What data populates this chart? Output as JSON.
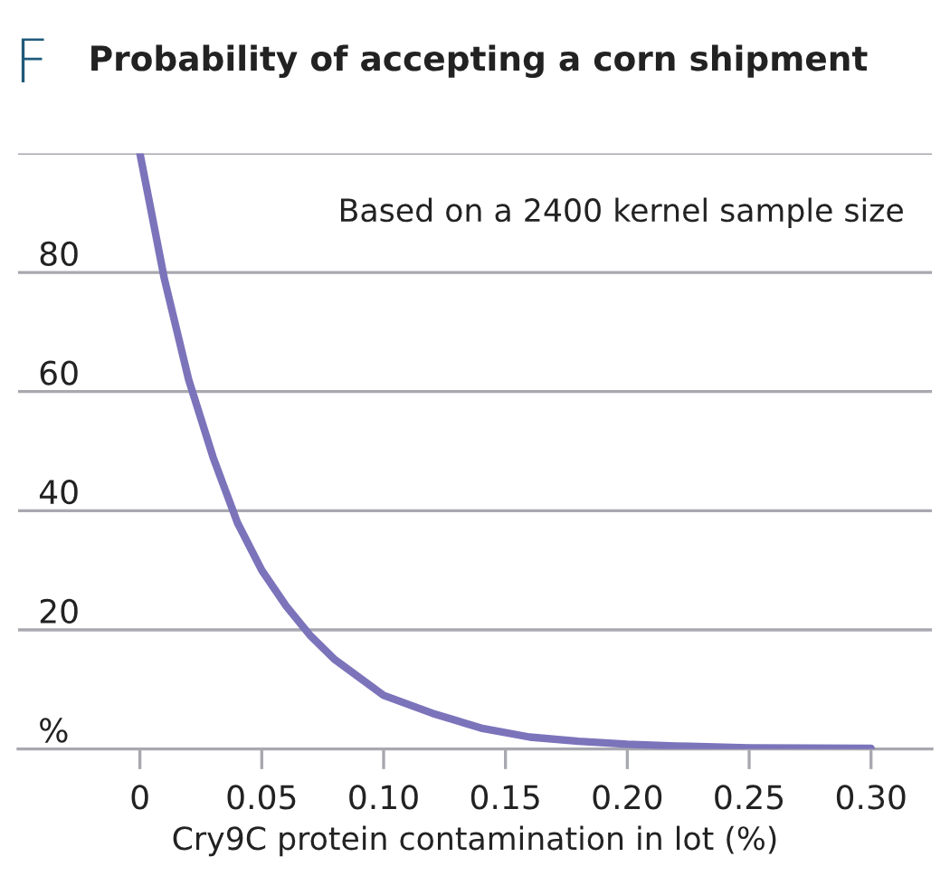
{
  "chart_data": {
    "type": "line",
    "title": "Probability of accepting a corn shipment",
    "xlabel": "Cry9C protein contamination in lot (%)",
    "annotations": [
      "F",
      "Based on a 2400 kernel sample size"
    ],
    "x": [
      0,
      0.01,
      0.02,
      0.03,
      0.04,
      0.05,
      0.06,
      0.07,
      0.08,
      0.09,
      0.1,
      0.12,
      0.14,
      0.16,
      0.18,
      0.2,
      0.22,
      0.25,
      0.3
    ],
    "series": [
      {
        "color": "#7b74bb",
        "values": [
          100,
          79,
          62,
          49,
          38,
          30,
          24,
          19,
          15,
          12,
          9,
          6,
          3.5,
          2,
          1.3,
          0.8,
          0.5,
          0.2,
          0.1
        ]
      }
    ],
    "xlim": [
      -0.05,
      0.325
    ],
    "xticks": [
      0,
      0.05,
      {
        "value": 0.1,
        "label": "0.10"
      },
      0.15,
      {
        "value": 0.2,
        "label": "0.20"
      },
      0.25,
      {
        "value": 0.3,
        "label": "0.30"
      }
    ],
    "ylim": [
      0,
      100
    ],
    "yticks": [
      {
        "value": 0,
        "label": "%"
      },
      20,
      40,
      60,
      80,
      {
        "value": 100,
        "label": null
      }
    ],
    "grid": "y",
    "legend": false,
    "marker": "none",
    "line_style": "solid"
  }
}
